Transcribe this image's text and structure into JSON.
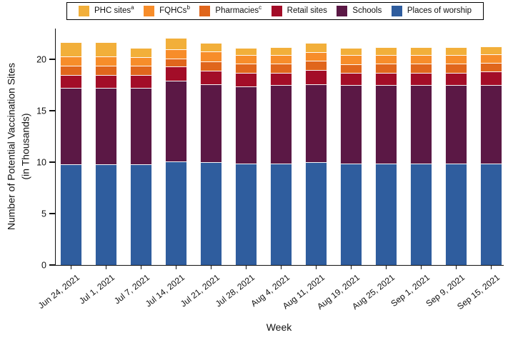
{
  "legend": {
    "items": [
      {
        "label": "PHC sites",
        "sup": "a",
        "color": "#F2AF3A"
      },
      {
        "label": "FQHCs",
        "sup": "b",
        "color": "#F78D2A"
      },
      {
        "label": "Pharmacies",
        "sup": "c",
        "color": "#E0661C"
      },
      {
        "label": "Retail sites",
        "sup": "",
        "color": "#A30D28"
      },
      {
        "label": "Schools",
        "sup": "",
        "color": "#5B1845"
      },
      {
        "label": "Places of worship",
        "sup": "",
        "color": "#2F5D9E"
      }
    ]
  },
  "axes": {
    "y_label_line1": "Number of Potential Vaccination Sites",
    "y_label_line2": "(in Thousands)",
    "x_label": "Week",
    "y_ticks": [
      0,
      5,
      10,
      15,
      20
    ]
  },
  "chart_data": {
    "type": "bar",
    "stacked": true,
    "title": "",
    "xlabel": "Week",
    "ylabel": "Number of Potential Vaccination Sites (in Thousands)",
    "ylim": [
      0,
      23
    ],
    "yticks": [
      0,
      5,
      10,
      15,
      20
    ],
    "grid": false,
    "legend_position": "top",
    "categories": [
      "Jun 24, 2021",
      "Jul 1, 2021",
      "Jul 7, 2021",
      "Jul 14, 2021",
      "Jul 21, 2021",
      "Jul 28, 2021",
      "Aug 4, 2021",
      "Aug 11, 2021",
      "Aug 19, 2021",
      "Aug 25, 2021",
      "Sep 1, 2021",
      "Sep 9, 2021",
      "Sep 15, 2021"
    ],
    "series": [
      {
        "name": "Places of worship",
        "color": "#2F5D9E",
        "values": [
          9.8,
          9.8,
          9.8,
          10.1,
          10.0,
          9.9,
          9.9,
          10.0,
          9.9,
          9.9,
          9.9,
          9.9,
          9.9
        ]
      },
      {
        "name": "Schools",
        "color": "#5B1845",
        "values": [
          7.4,
          7.4,
          7.4,
          7.8,
          7.6,
          7.5,
          7.6,
          7.6,
          7.6,
          7.6,
          7.6,
          7.6,
          7.6
        ]
      },
      {
        "name": "Retail sites",
        "color": "#A30D28",
        "values": [
          1.3,
          1.3,
          1.3,
          1.4,
          1.3,
          1.3,
          1.2,
          1.4,
          1.2,
          1.2,
          1.2,
          1.2,
          1.3
        ]
      },
      {
        "name": "Pharmacies",
        "color": "#E0661C",
        "values": [
          0.9,
          0.9,
          0.9,
          0.8,
          0.9,
          0.9,
          0.9,
          0.9,
          0.8,
          0.9,
          0.9,
          0.9,
          0.9
        ]
      },
      {
        "name": "FQHCs",
        "color": "#F78D2A",
        "values": [
          0.9,
          0.9,
          0.8,
          0.9,
          1.0,
          0.8,
          0.8,
          0.8,
          0.9,
          0.8,
          0.8,
          0.8,
          0.8
        ]
      },
      {
        "name": "PHC sites",
        "color": "#F2AF3A",
        "values": [
          1.4,
          1.4,
          0.9,
          1.1,
          0.8,
          0.7,
          0.8,
          0.9,
          0.7,
          0.8,
          0.8,
          0.8,
          0.8
        ]
      }
    ]
  }
}
